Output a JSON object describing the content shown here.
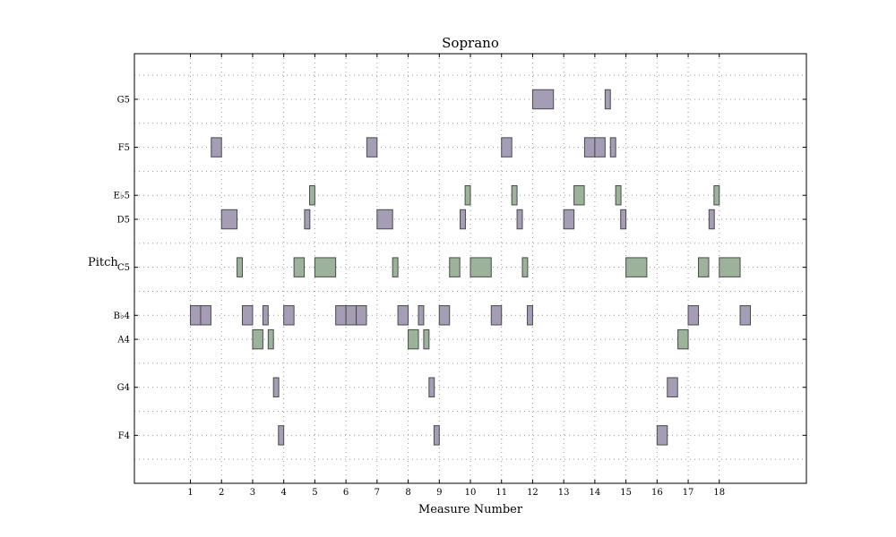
{
  "chart_data": {
    "type": "piano-roll",
    "title": "Soprano",
    "xlabel": "Measure Number",
    "ylabel": "Pitch",
    "xlim": [
      -0.8,
      20.8
    ],
    "ylim": [
      63,
      80.9
    ],
    "x_ticks": [
      1,
      2,
      3,
      4,
      5,
      6,
      7,
      8,
      9,
      10,
      11,
      12,
      13,
      14,
      15,
      16,
      17,
      18
    ],
    "pitch_ticks": [
      {
        "label": "F4",
        "pitch": 65
      },
      {
        "label": "G4",
        "pitch": 67
      },
      {
        "label": "A4",
        "pitch": 69
      },
      {
        "label": "B♭4",
        "pitch": 70
      },
      {
        "label": "C5",
        "pitch": 72
      },
      {
        "label": "D5",
        "pitch": 74
      },
      {
        "label": "E♭5",
        "pitch": 75
      },
      {
        "label": "F5",
        "pitch": 77
      },
      {
        "label": "G5",
        "pitch": 79
      }
    ],
    "pitch_min": 64,
    "pitch_max": 80,
    "colors": {
      "scale_tone": "#a59cb5",
      "other": "#9db29b"
    },
    "notes": [
      {
        "start": 1.0,
        "dur": 0.33,
        "pitch": 70,
        "group": "scale_tone"
      },
      {
        "start": 1.33,
        "dur": 0.33,
        "pitch": 70,
        "group": "scale_tone"
      },
      {
        "start": 1.67,
        "dur": 0.33,
        "pitch": 77,
        "group": "scale_tone"
      },
      {
        "start": 2.0,
        "dur": 0.5,
        "pitch": 74,
        "group": "scale_tone"
      },
      {
        "start": 2.5,
        "dur": 0.17,
        "pitch": 72,
        "group": "other"
      },
      {
        "start": 2.67,
        "dur": 0.33,
        "pitch": 70,
        "group": "scale_tone"
      },
      {
        "start": 3.0,
        "dur": 0.33,
        "pitch": 69,
        "group": "other"
      },
      {
        "start": 3.33,
        "dur": 0.17,
        "pitch": 70,
        "group": "scale_tone"
      },
      {
        "start": 3.5,
        "dur": 0.17,
        "pitch": 69,
        "group": "other"
      },
      {
        "start": 3.67,
        "dur": 0.17,
        "pitch": 67,
        "group": "scale_tone"
      },
      {
        "start": 3.83,
        "dur": 0.17,
        "pitch": 65,
        "group": "scale_tone"
      },
      {
        "start": 4.0,
        "dur": 0.33,
        "pitch": 70,
        "group": "scale_tone"
      },
      {
        "start": 4.33,
        "dur": 0.33,
        "pitch": 72,
        "group": "other"
      },
      {
        "start": 4.67,
        "dur": 0.17,
        "pitch": 74,
        "group": "scale_tone"
      },
      {
        "start": 4.83,
        "dur": 0.17,
        "pitch": 75,
        "group": "other"
      },
      {
        "start": 5.0,
        "dur": 0.67,
        "pitch": 72,
        "group": "other"
      },
      {
        "start": 5.67,
        "dur": 0.33,
        "pitch": 70,
        "group": "scale_tone"
      },
      {
        "start": 6.0,
        "dur": 0.33,
        "pitch": 70,
        "group": "scale_tone"
      },
      {
        "start": 6.33,
        "dur": 0.33,
        "pitch": 70,
        "group": "scale_tone"
      },
      {
        "start": 6.67,
        "dur": 0.33,
        "pitch": 77,
        "group": "scale_tone"
      },
      {
        "start": 7.0,
        "dur": 0.5,
        "pitch": 74,
        "group": "scale_tone"
      },
      {
        "start": 7.5,
        "dur": 0.17,
        "pitch": 72,
        "group": "other"
      },
      {
        "start": 7.67,
        "dur": 0.33,
        "pitch": 70,
        "group": "scale_tone"
      },
      {
        "start": 8.0,
        "dur": 0.33,
        "pitch": 69,
        "group": "other"
      },
      {
        "start": 8.33,
        "dur": 0.17,
        "pitch": 70,
        "group": "scale_tone"
      },
      {
        "start": 8.5,
        "dur": 0.17,
        "pitch": 69,
        "group": "other"
      },
      {
        "start": 8.67,
        "dur": 0.17,
        "pitch": 67,
        "group": "scale_tone"
      },
      {
        "start": 8.83,
        "dur": 0.17,
        "pitch": 65,
        "group": "scale_tone"
      },
      {
        "start": 9.0,
        "dur": 0.33,
        "pitch": 70,
        "group": "scale_tone"
      },
      {
        "start": 9.33,
        "dur": 0.33,
        "pitch": 72,
        "group": "other"
      },
      {
        "start": 9.67,
        "dur": 0.17,
        "pitch": 74,
        "group": "scale_tone"
      },
      {
        "start": 9.83,
        "dur": 0.17,
        "pitch": 75,
        "group": "other"
      },
      {
        "start": 10.0,
        "dur": 0.67,
        "pitch": 72,
        "group": "other"
      },
      {
        "start": 10.67,
        "dur": 0.33,
        "pitch": 70,
        "group": "scale_tone"
      },
      {
        "start": 11.0,
        "dur": 0.33,
        "pitch": 77,
        "group": "scale_tone"
      },
      {
        "start": 11.33,
        "dur": 0.17,
        "pitch": 75,
        "group": "other"
      },
      {
        "start": 11.5,
        "dur": 0.17,
        "pitch": 74,
        "group": "scale_tone"
      },
      {
        "start": 11.67,
        "dur": 0.17,
        "pitch": 72,
        "group": "other"
      },
      {
        "start": 11.83,
        "dur": 0.17,
        "pitch": 70,
        "group": "scale_tone"
      },
      {
        "start": 12.0,
        "dur": 0.67,
        "pitch": 79,
        "group": "scale_tone"
      },
      {
        "start": 13.0,
        "dur": 0.33,
        "pitch": 74,
        "group": "scale_tone"
      },
      {
        "start": 13.33,
        "dur": 0.33,
        "pitch": 75,
        "group": "other"
      },
      {
        "start": 13.67,
        "dur": 0.33,
        "pitch": 77,
        "group": "scale_tone"
      },
      {
        "start": 14.0,
        "dur": 0.33,
        "pitch": 77,
        "group": "scale_tone"
      },
      {
        "start": 14.33,
        "dur": 0.17,
        "pitch": 79,
        "group": "scale_tone"
      },
      {
        "start": 14.5,
        "dur": 0.17,
        "pitch": 77,
        "group": "scale_tone"
      },
      {
        "start": 14.67,
        "dur": 0.17,
        "pitch": 75,
        "group": "other"
      },
      {
        "start": 14.83,
        "dur": 0.17,
        "pitch": 74,
        "group": "scale_tone"
      },
      {
        "start": 15.0,
        "dur": 0.67,
        "pitch": 72,
        "group": "other"
      },
      {
        "start": 16.0,
        "dur": 0.33,
        "pitch": 65,
        "group": "scale_tone"
      },
      {
        "start": 16.33,
        "dur": 0.33,
        "pitch": 67,
        "group": "scale_tone"
      },
      {
        "start": 16.67,
        "dur": 0.33,
        "pitch": 69,
        "group": "other"
      },
      {
        "start": 17.0,
        "dur": 0.33,
        "pitch": 70,
        "group": "scale_tone"
      },
      {
        "start": 17.33,
        "dur": 0.33,
        "pitch": 72,
        "group": "other"
      },
      {
        "start": 17.67,
        "dur": 0.17,
        "pitch": 74,
        "group": "scale_tone"
      },
      {
        "start": 17.83,
        "dur": 0.17,
        "pitch": 75,
        "group": "other"
      },
      {
        "start": 18.0,
        "dur": 0.67,
        "pitch": 72,
        "group": "other"
      },
      {
        "start": 18.67,
        "dur": 0.33,
        "pitch": 70,
        "group": "scale_tone"
      }
    ]
  }
}
